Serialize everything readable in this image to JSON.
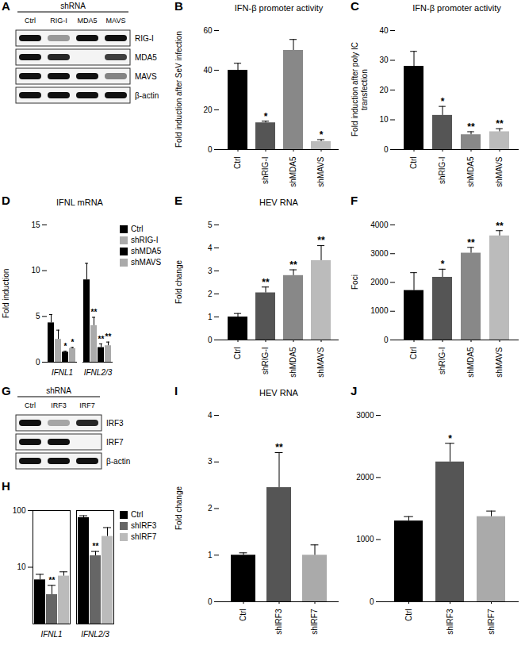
{
  "chart_data": [
    {
      "panel": "B",
      "type": "bar",
      "title": "IFN-β promoter activity",
      "y_label": "Fold induction after SeV infection",
      "categories": [
        "Ctrl",
        "shRIG-I",
        "shMDA5",
        "shMAVS"
      ],
      "values": [
        40,
        13.5,
        50,
        4
      ],
      "errors": [
        3.5,
        0.8,
        5.5,
        1
      ],
      "significance": [
        null,
        "*",
        null,
        "*"
      ],
      "colors": [
        "#000000",
        "#555555",
        "#888888",
        "#bbbbbb"
      ],
      "ylim": [
        0,
        60
      ],
      "yticks": [
        0,
        20,
        40,
        60
      ]
    },
    {
      "panel": "C",
      "type": "bar",
      "title": "IFN-β promoter activity",
      "y_label": "Fold induction after poly IC transfection",
      "categories": [
        "Ctrl",
        "shRIG-I",
        "shMDA5",
        "shMAVS"
      ],
      "values": [
        28,
        11.5,
        5,
        6
      ],
      "errors": [
        5,
        3,
        1,
        1
      ],
      "significance": [
        null,
        "*",
        "**",
        "**"
      ],
      "colors": [
        "#000000",
        "#555555",
        "#888888",
        "#bbbbbb"
      ],
      "ylim": [
        0,
        40
      ],
      "yticks": [
        0,
        10,
        20,
        30,
        40
      ]
    },
    {
      "panel": "D",
      "type": "bar",
      "title": "IFNL mRNA",
      "y_label": "Fold induction",
      "categories": [
        "IFNL1",
        "IFNL2/3"
      ],
      "series": [
        {
          "name": "Ctrl",
          "color": "#000000",
          "values": [
            4.3,
            9.0
          ],
          "errors": [
            0.9,
            1.8
          ],
          "significance": [
            null,
            null
          ]
        },
        {
          "name": "shRIG-I",
          "color": "#aaaaaa",
          "values": [
            2.5,
            4.0
          ],
          "errors": [
            1.0,
            0.9
          ],
          "significance": [
            null,
            "**"
          ]
        },
        {
          "name": "shMDA5",
          "color": "#000000",
          "values": [
            1.1,
            1.6
          ],
          "errors": [
            0.1,
            0.4
          ],
          "significance": [
            "*",
            "**"
          ]
        },
        {
          "name": "shMAVS",
          "color": "#aaaaaa",
          "values": [
            1.5,
            1.8
          ],
          "errors": [
            0.1,
            0.4
          ],
          "significance": [
            "*",
            "**"
          ]
        }
      ],
      "legend": "right",
      "ylim": [
        0,
        15
      ],
      "yticks": [
        0,
        5,
        10,
        15
      ]
    },
    {
      "panel": "E",
      "type": "bar",
      "title": "HEV RNA",
      "y_label": "Fold change",
      "categories": [
        "Ctrl",
        "shRIG-I",
        "shMDA5",
        "shMAVS"
      ],
      "values": [
        1.0,
        2.05,
        2.8,
        3.45
      ],
      "errors": [
        0.15,
        0.25,
        0.25,
        0.65
      ],
      "significance": [
        null,
        "**",
        "**",
        "**"
      ],
      "colors": [
        "#000000",
        "#555555",
        "#888888",
        "#bbbbbb"
      ],
      "ylim": [
        0,
        5
      ],
      "yticks": [
        0,
        1,
        2,
        3,
        4,
        5
      ]
    },
    {
      "panel": "F",
      "type": "bar",
      "y_label": "Foci",
      "categories": [
        "Ctrl",
        "shRIG-I",
        "shMDA5",
        "shMAVS"
      ],
      "values": [
        1720,
        2180,
        3020,
        3620
      ],
      "errors": [
        620,
        280,
        200,
        180
      ],
      "significance": [
        null,
        "*",
        "**",
        "**"
      ],
      "colors": [
        "#000000",
        "#555555",
        "#888888",
        "#bbbbbb"
      ],
      "ylim": [
        0,
        4000
      ],
      "yticks": [
        0,
        1000,
        2000,
        3000,
        4000
      ]
    },
    {
      "panel": "H",
      "type": "bar",
      "categories": [
        "IFNL1",
        "IFNL2/3"
      ],
      "series": [
        {
          "name": "Ctrl",
          "color": "#000000",
          "values": [
            6,
            75
          ],
          "errors": [
            1.5,
            6
          ],
          "significance": [
            null,
            null
          ]
        },
        {
          "name": "shIRF3",
          "color": "#666666",
          "values": [
            3.3,
            16
          ],
          "errors": [
            1.5,
            3
          ],
          "significance": [
            "**",
            "**"
          ]
        },
        {
          "name": "shIRF7",
          "color": "#bbbbbb",
          "values": [
            7,
            35
          ],
          "errors": [
            1.3,
            15
          ],
          "significance": [
            null,
            null
          ]
        }
      ],
      "legend": "right",
      "log": "y",
      "ylim": [
        1,
        100
      ],
      "yticks": [
        10,
        100
      ]
    },
    {
      "panel": "I",
      "type": "bar",
      "title": "HEV RNA",
      "y_label": "Fold change",
      "categories": [
        "Ctrl",
        "shIRF3",
        "shIRF7"
      ],
      "values": [
        1.0,
        2.45,
        1.0
      ],
      "errors": [
        0.05,
        0.75,
        0.22
      ],
      "significance": [
        null,
        "**",
        null
      ],
      "colors": [
        "#000000",
        "#555555",
        "#aaaaaa"
      ],
      "ylim": [
        0,
        4
      ],
      "yticks": [
        0,
        1,
        2,
        3,
        4
      ]
    },
    {
      "panel": "J",
      "type": "bar",
      "categories": [
        "Ctrl",
        "shIRF3",
        "shIRF7"
      ],
      "values": [
        1300,
        2250,
        1370
      ],
      "errors": [
        70,
        300,
        90
      ],
      "significance": [
        null,
        "*",
        null
      ],
      "colors": [
        "#000000",
        "#555555",
        "#aaaaaa"
      ],
      "ylim": [
        0,
        3000
      ],
      "yticks": [
        0,
        1000,
        2000,
        3000
      ]
    }
  ],
  "blots": [
    {
      "panel": "A",
      "header": "shRNA",
      "lanes": [
        "Ctrl",
        "RIG-I",
        "MDA5",
        "MAVS"
      ],
      "rows": [
        {
          "label": "RIG-I",
          "levels": [
            1,
            0.4,
            1,
            1
          ]
        },
        {
          "label": "MDA5",
          "levels": [
            1,
            0.9,
            0,
            0.8
          ]
        },
        {
          "label": "MAVS",
          "levels": [
            1,
            1,
            1,
            0.5
          ]
        },
        {
          "label": "β-actin",
          "levels": [
            1,
            1,
            1,
            1
          ]
        }
      ]
    },
    {
      "panel": "G",
      "header": "shRNA",
      "lanes": [
        "Ctrl",
        "IRF3",
        "IRF7"
      ],
      "rows": [
        {
          "label": "IRF3",
          "levels": [
            1,
            0.35,
            0.9
          ]
        },
        {
          "label": "IRF7",
          "levels": [
            1,
            1,
            0
          ]
        },
        {
          "label": "β-actin",
          "levels": [
            1,
            1,
            1
          ]
        }
      ]
    }
  ]
}
